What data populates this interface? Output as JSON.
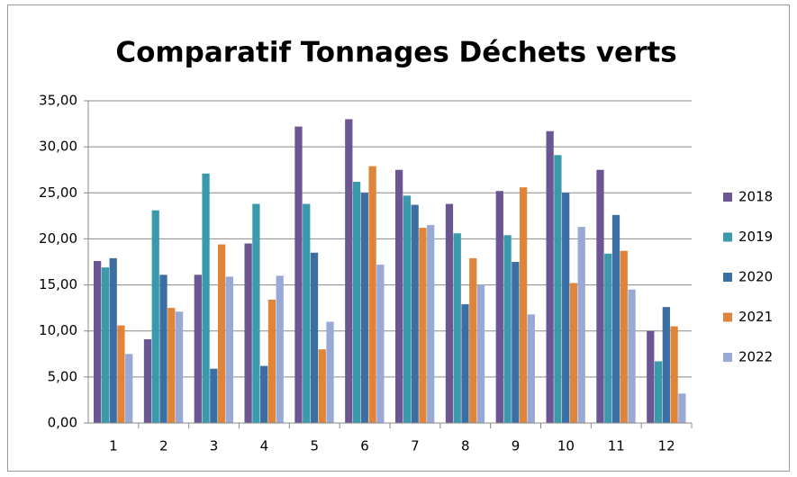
{
  "chart_data": {
    "type": "bar",
    "title": "Comparatif Tonnages Déchets verts",
    "categories": [
      "1",
      "2",
      "3",
      "4",
      "5",
      "6",
      "7",
      "8",
      "9",
      "10",
      "11",
      "12"
    ],
    "series": [
      {
        "name": "2018",
        "color": "#6b5592",
        "values": [
          17.6,
          9.1,
          16.1,
          19.5,
          32.2,
          33.0,
          27.5,
          23.8,
          25.2,
          31.7,
          27.5,
          10.0
        ]
      },
      {
        "name": "2019",
        "color": "#3a9aac",
        "values": [
          16.9,
          23.1,
          27.1,
          23.8,
          23.8,
          26.2,
          24.7,
          20.6,
          20.4,
          29.1,
          18.4,
          6.7
        ]
      },
      {
        "name": "2020",
        "color": "#3b6fa3",
        "values": [
          17.9,
          16.1,
          5.9,
          6.2,
          18.5,
          25.0,
          23.7,
          12.9,
          17.5,
          25.0,
          22.6,
          12.6
        ]
      },
      {
        "name": "2021",
        "color": "#e0843a",
        "values": [
          10.6,
          12.5,
          19.4,
          13.4,
          8.0,
          27.9,
          21.2,
          17.9,
          25.6,
          15.2,
          18.7,
          10.5
        ]
      },
      {
        "name": "2022",
        "color": "#97a9d4",
        "values": [
          7.5,
          12.1,
          15.9,
          16.0,
          11.0,
          17.2,
          21.5,
          15.0,
          11.8,
          21.3,
          14.5,
          3.2
        ]
      }
    ],
    "ylim": [
      0,
      35
    ],
    "yticks": [
      {
        "value": 0,
        "label": "0,00"
      },
      {
        "value": 5,
        "label": "5,00"
      },
      {
        "value": 10,
        "label": "10,00"
      },
      {
        "value": 15,
        "label": "15,00"
      },
      {
        "value": 20,
        "label": "20,00"
      },
      {
        "value": 25,
        "label": "25,00"
      },
      {
        "value": 30,
        "label": "30,00"
      },
      {
        "value": 35,
        "label": "35,00"
      }
    ],
    "grid": true,
    "legend": "right"
  }
}
